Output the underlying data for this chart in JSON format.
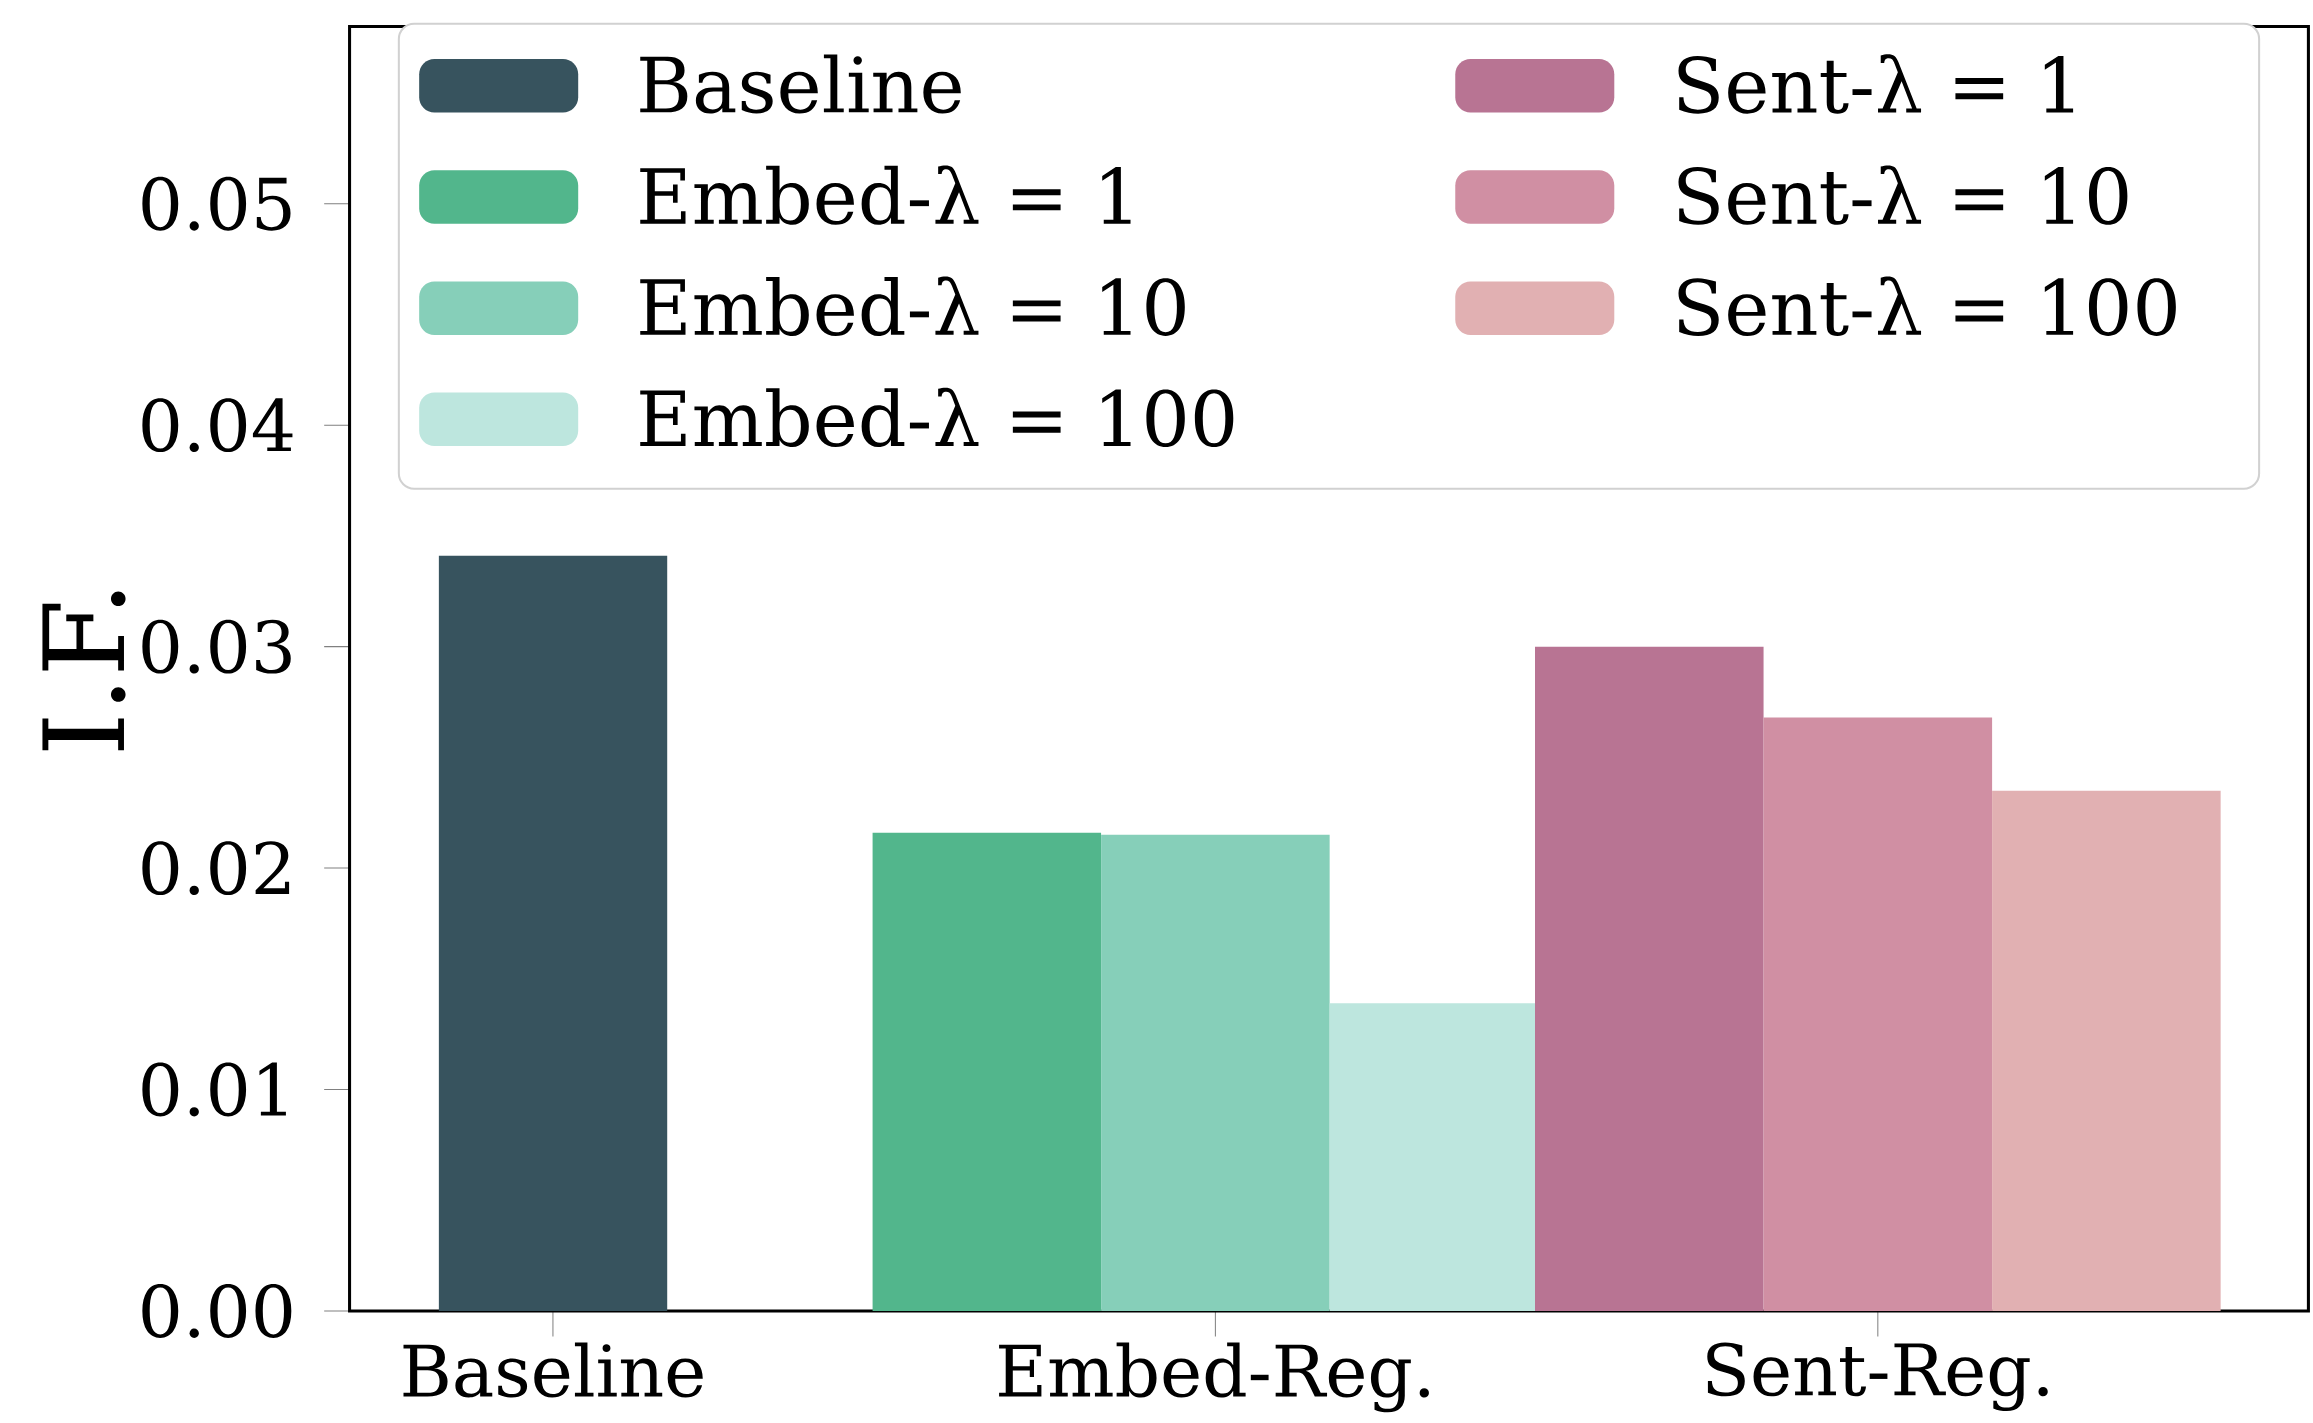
{
  "chart_data": {
    "type": "bar",
    "ylabel": "I.F.",
    "categories": [
      "Baseline",
      "Embed-Reg.",
      "Sent-Reg."
    ],
    "series": [
      {
        "name": "Baseline",
        "color": "#37535e",
        "values": [
          0.0341,
          null,
          null
        ]
      },
      {
        "name": "Embed-λ = 1",
        "color": "#52b68c",
        "values": [
          null,
          0.0216,
          null
        ]
      },
      {
        "name": "Embed-λ = 10",
        "color": "#86cfb9",
        "values": [
          null,
          0.0215,
          null
        ]
      },
      {
        "name": "Embed-λ = 100",
        "color": "#bde6de",
        "values": [
          null,
          0.0139,
          null
        ]
      },
      {
        "name": "Sent-λ = 1",
        "color": "#b87493",
        "values": [
          null,
          null,
          0.03
        ]
      },
      {
        "name": "Sent-λ = 10",
        "color": "#d08fa3",
        "values": [
          null,
          null,
          0.0268
        ]
      },
      {
        "name": "Sent-λ = 100",
        "color": "#e1b0b2",
        "values": [
          null,
          null,
          0.0235
        ]
      }
    ],
    "ylim": [
      0,
      0.058
    ],
    "yticks": [
      {
        "value": 0,
        "label": "0.00"
      },
      0.01,
      0.02,
      0.03,
      0.04,
      0.05
    ],
    "legend": "top"
  }
}
